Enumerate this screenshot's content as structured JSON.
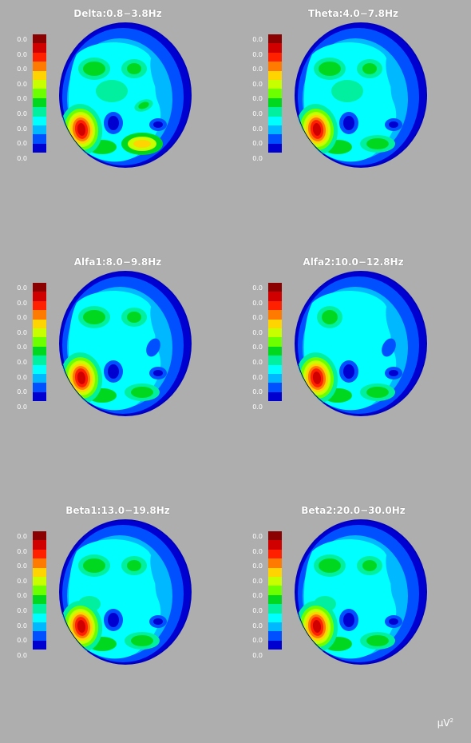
{
  "colormap": [
    "#8b0000",
    "#d00000",
    "#ff2000",
    "#ff7a00",
    "#ffd400",
    "#c8ff00",
    "#6cff00",
    "#00d820",
    "#00f0a0",
    "#00ffff",
    "#00b8ff",
    "#0050ff",
    "#0000d0"
  ],
  "scale_labels": [
    "0.0",
    "0.0",
    "0.0",
    "0.0",
    "0.0",
    "0.0",
    "0.0",
    "0.0",
    "0.0"
  ],
  "unit_label": "µV",
  "unit_exponent": "2",
  "panels": [
    {
      "title": "Delta:0.8−3.8Hz",
      "variant": "delta"
    },
    {
      "title": "Theta:4.0−7.8Hz",
      "variant": "theta"
    },
    {
      "title": "Alfa1:8.0−9.8Hz",
      "variant": "alfa1"
    },
    {
      "title": "Alfa2:10.0−12.8Hz",
      "variant": "alfa2"
    },
    {
      "title": "Beta1:13.0−19.8Hz",
      "variant": "beta1"
    },
    {
      "title": "Beta2:20.0−30.0Hz",
      "variant": "beta2"
    }
  ]
}
